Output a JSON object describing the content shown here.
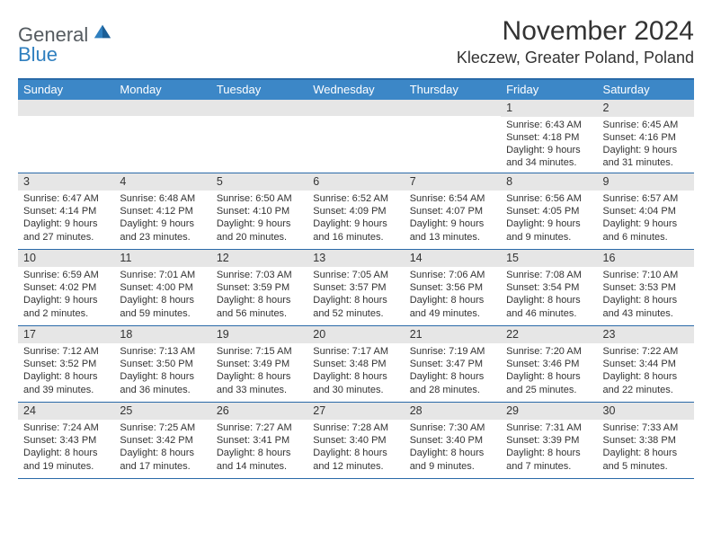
{
  "brand": {
    "main": "General",
    "sub": "Blue"
  },
  "title": "November 2024",
  "location": "Kleczew, Greater Poland, Poland",
  "colors": {
    "header_bar": "#3c87c7",
    "border": "#2a6aa8",
    "daynum_bg": "#e6e6e6",
    "logo_sub": "#2f7fbf",
    "text": "#333333",
    "bg": "#ffffff"
  },
  "day_headers": [
    "Sunday",
    "Monday",
    "Tuesday",
    "Wednesday",
    "Thursday",
    "Friday",
    "Saturday"
  ],
  "weeks": [
    [
      {
        "n": "",
        "sr": "",
        "ss": "",
        "dl": ""
      },
      {
        "n": "",
        "sr": "",
        "ss": "",
        "dl": ""
      },
      {
        "n": "",
        "sr": "",
        "ss": "",
        "dl": ""
      },
      {
        "n": "",
        "sr": "",
        "ss": "",
        "dl": ""
      },
      {
        "n": "",
        "sr": "",
        "ss": "",
        "dl": ""
      },
      {
        "n": "1",
        "sr": "Sunrise: 6:43 AM",
        "ss": "Sunset: 4:18 PM",
        "dl": "Daylight: 9 hours and 34 minutes."
      },
      {
        "n": "2",
        "sr": "Sunrise: 6:45 AM",
        "ss": "Sunset: 4:16 PM",
        "dl": "Daylight: 9 hours and 31 minutes."
      }
    ],
    [
      {
        "n": "3",
        "sr": "Sunrise: 6:47 AM",
        "ss": "Sunset: 4:14 PM",
        "dl": "Daylight: 9 hours and 27 minutes."
      },
      {
        "n": "4",
        "sr": "Sunrise: 6:48 AM",
        "ss": "Sunset: 4:12 PM",
        "dl": "Daylight: 9 hours and 23 minutes."
      },
      {
        "n": "5",
        "sr": "Sunrise: 6:50 AM",
        "ss": "Sunset: 4:10 PM",
        "dl": "Daylight: 9 hours and 20 minutes."
      },
      {
        "n": "6",
        "sr": "Sunrise: 6:52 AM",
        "ss": "Sunset: 4:09 PM",
        "dl": "Daylight: 9 hours and 16 minutes."
      },
      {
        "n": "7",
        "sr": "Sunrise: 6:54 AM",
        "ss": "Sunset: 4:07 PM",
        "dl": "Daylight: 9 hours and 13 minutes."
      },
      {
        "n": "8",
        "sr": "Sunrise: 6:56 AM",
        "ss": "Sunset: 4:05 PM",
        "dl": "Daylight: 9 hours and 9 minutes."
      },
      {
        "n": "9",
        "sr": "Sunrise: 6:57 AM",
        "ss": "Sunset: 4:04 PM",
        "dl": "Daylight: 9 hours and 6 minutes."
      }
    ],
    [
      {
        "n": "10",
        "sr": "Sunrise: 6:59 AM",
        "ss": "Sunset: 4:02 PM",
        "dl": "Daylight: 9 hours and 2 minutes."
      },
      {
        "n": "11",
        "sr": "Sunrise: 7:01 AM",
        "ss": "Sunset: 4:00 PM",
        "dl": "Daylight: 8 hours and 59 minutes."
      },
      {
        "n": "12",
        "sr": "Sunrise: 7:03 AM",
        "ss": "Sunset: 3:59 PM",
        "dl": "Daylight: 8 hours and 56 minutes."
      },
      {
        "n": "13",
        "sr": "Sunrise: 7:05 AM",
        "ss": "Sunset: 3:57 PM",
        "dl": "Daylight: 8 hours and 52 minutes."
      },
      {
        "n": "14",
        "sr": "Sunrise: 7:06 AM",
        "ss": "Sunset: 3:56 PM",
        "dl": "Daylight: 8 hours and 49 minutes."
      },
      {
        "n": "15",
        "sr": "Sunrise: 7:08 AM",
        "ss": "Sunset: 3:54 PM",
        "dl": "Daylight: 8 hours and 46 minutes."
      },
      {
        "n": "16",
        "sr": "Sunrise: 7:10 AM",
        "ss": "Sunset: 3:53 PM",
        "dl": "Daylight: 8 hours and 43 minutes."
      }
    ],
    [
      {
        "n": "17",
        "sr": "Sunrise: 7:12 AM",
        "ss": "Sunset: 3:52 PM",
        "dl": "Daylight: 8 hours and 39 minutes."
      },
      {
        "n": "18",
        "sr": "Sunrise: 7:13 AM",
        "ss": "Sunset: 3:50 PM",
        "dl": "Daylight: 8 hours and 36 minutes."
      },
      {
        "n": "19",
        "sr": "Sunrise: 7:15 AM",
        "ss": "Sunset: 3:49 PM",
        "dl": "Daylight: 8 hours and 33 minutes."
      },
      {
        "n": "20",
        "sr": "Sunrise: 7:17 AM",
        "ss": "Sunset: 3:48 PM",
        "dl": "Daylight: 8 hours and 30 minutes."
      },
      {
        "n": "21",
        "sr": "Sunrise: 7:19 AM",
        "ss": "Sunset: 3:47 PM",
        "dl": "Daylight: 8 hours and 28 minutes."
      },
      {
        "n": "22",
        "sr": "Sunrise: 7:20 AM",
        "ss": "Sunset: 3:46 PM",
        "dl": "Daylight: 8 hours and 25 minutes."
      },
      {
        "n": "23",
        "sr": "Sunrise: 7:22 AM",
        "ss": "Sunset: 3:44 PM",
        "dl": "Daylight: 8 hours and 22 minutes."
      }
    ],
    [
      {
        "n": "24",
        "sr": "Sunrise: 7:24 AM",
        "ss": "Sunset: 3:43 PM",
        "dl": "Daylight: 8 hours and 19 minutes."
      },
      {
        "n": "25",
        "sr": "Sunrise: 7:25 AM",
        "ss": "Sunset: 3:42 PM",
        "dl": "Daylight: 8 hours and 17 minutes."
      },
      {
        "n": "26",
        "sr": "Sunrise: 7:27 AM",
        "ss": "Sunset: 3:41 PM",
        "dl": "Daylight: 8 hours and 14 minutes."
      },
      {
        "n": "27",
        "sr": "Sunrise: 7:28 AM",
        "ss": "Sunset: 3:40 PM",
        "dl": "Daylight: 8 hours and 12 minutes."
      },
      {
        "n": "28",
        "sr": "Sunrise: 7:30 AM",
        "ss": "Sunset: 3:40 PM",
        "dl": "Daylight: 8 hours and 9 minutes."
      },
      {
        "n": "29",
        "sr": "Sunrise: 7:31 AM",
        "ss": "Sunset: 3:39 PM",
        "dl": "Daylight: 8 hours and 7 minutes."
      },
      {
        "n": "30",
        "sr": "Sunrise: 7:33 AM",
        "ss": "Sunset: 3:38 PM",
        "dl": "Daylight: 8 hours and 5 minutes."
      }
    ]
  ]
}
